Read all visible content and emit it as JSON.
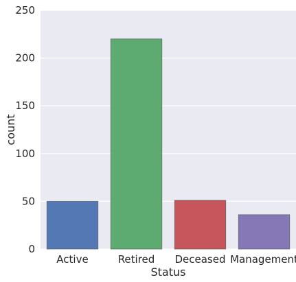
{
  "chart_data": {
    "type": "bar",
    "title": "",
    "xlabel": "Status",
    "ylabel": "count",
    "categories": [
      "Active",
      "Retired",
      "Deceased",
      "Management"
    ],
    "values": [
      50,
      220,
      51,
      36
    ],
    "colors": [
      "#4C72B0",
      "#55A868",
      "#C44E52",
      "#8172B2"
    ],
    "ylim": [
      0,
      250
    ],
    "yticks": [
      "0",
      "50",
      "100",
      "150",
      "200",
      "250"
    ],
    "background": "#EAEAF2",
    "grid": true,
    "legend": "none"
  }
}
